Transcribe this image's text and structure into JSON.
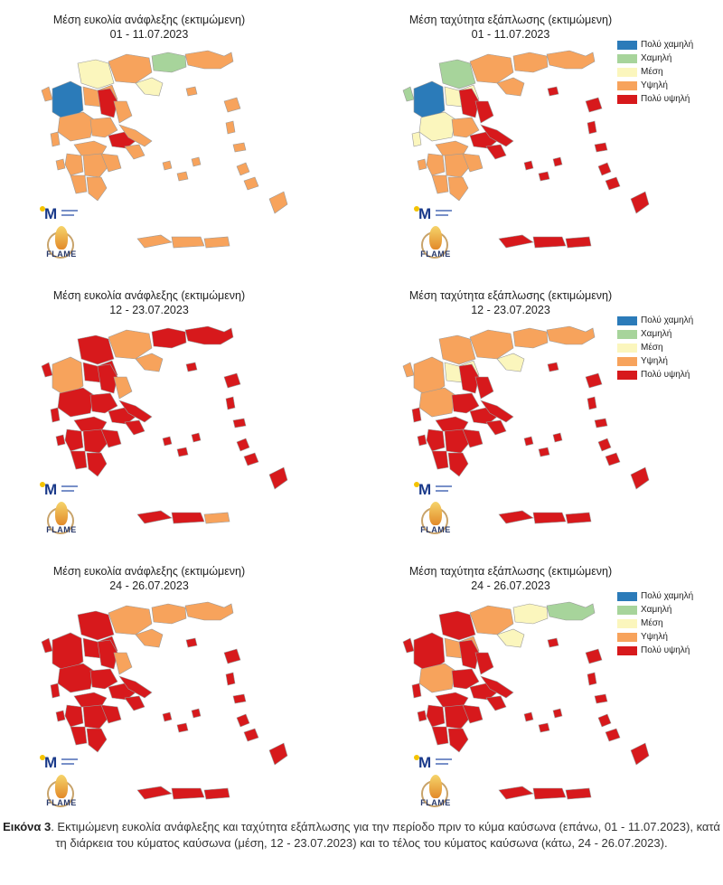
{
  "colors": {
    "very_low": "#2b7bb9",
    "low": "#a7d49b",
    "medium": "#fbf6bd",
    "high": "#f7a35c",
    "very_high": "#d7191c"
  },
  "legend": {
    "items": [
      {
        "label": "Πολύ χαμηλή",
        "color": "#2b7bb9"
      },
      {
        "label": "Χαμηλή",
        "color": "#a7d49b"
      },
      {
        "label": "Μέση",
        "color": "#fbf6bd"
      },
      {
        "label": "Υψηλή",
        "color": "#f7a35c"
      },
      {
        "label": "Πολύ υψηλή",
        "color": "#d7191c"
      }
    ]
  },
  "logo_text": "FLAME",
  "panels": [
    {
      "title": "Μέση ευκολία ανάφλεξης (εκτιμώμενη)",
      "period": "01 - 11.07.2023",
      "level": "high"
    },
    {
      "title": "Μέση ταχύτητα εξάπλωσης (εκτιμώμενη)",
      "period": "01 - 11.07.2023",
      "level": "mixed1"
    },
    {
      "title": "Μέση ευκολία ανάφλεξης (εκτιμώμενη)",
      "period": "12 - 23.07.2023",
      "level": "red"
    },
    {
      "title": "Μέση ταχύτητα εξάπλωσης (εκτιμώμενη)",
      "period": "12 - 23.07.2023",
      "level": "mixed2"
    },
    {
      "title": "Μέση ευκολία ανάφλεξης (εκτιμώμενη)",
      "period": "24 - 26.07.2023",
      "level": "red"
    },
    {
      "title": "Μέση ταχύτητα εξάπλωσης (εκτιμώμενη)",
      "period": "24 - 26.07.2023",
      "level": "mixed3"
    }
  ],
  "caption": {
    "label": "Εικόνα 3",
    "text": ". Εκτιμώμενη ευκολία ανάφλεξης και ταχύτητα εξάπλωσης για την περίοδο πριν το κύμα καύσωνα (επάνω, 01 - 11.07.2023), κατά τη διάρκεια του κύματος καύσωνα (μέση, 12 - 23.07.2023) και το τέλος του κύματος καύσωνα (κάτω, 24 - 26.07.2023)."
  }
}
